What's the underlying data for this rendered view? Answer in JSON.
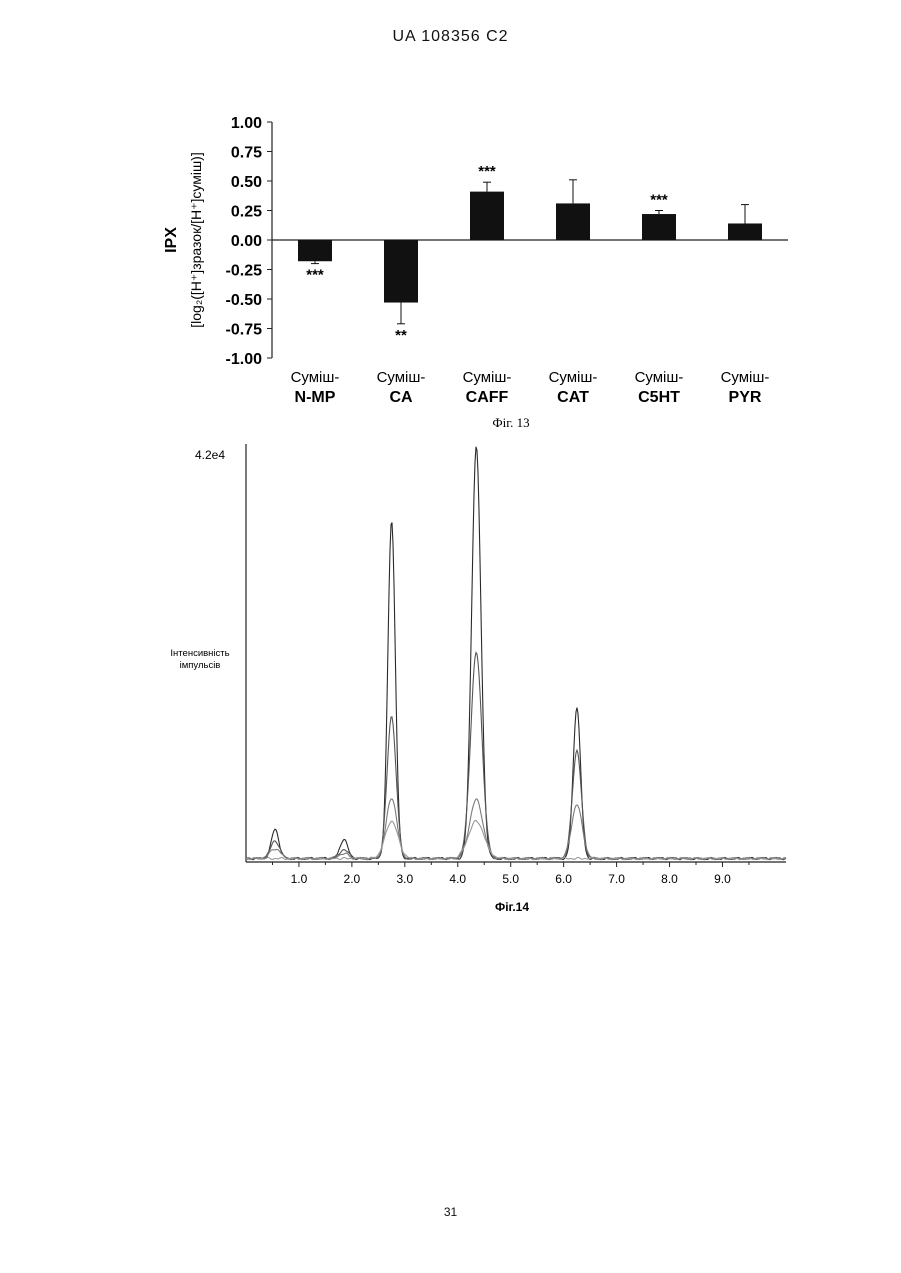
{
  "document": {
    "header": "UA   108356   C2",
    "page_number": "31"
  },
  "chart_data": [
    {
      "type": "bar",
      "ylabel_main": "IPX",
      "ylabel_sub": "[log₂([H⁺]зразок/[H⁺]суміш)]",
      "ylim": [
        -1.0,
        1.0
      ],
      "yticks": [
        "1.00",
        "0.75",
        "0.50",
        "0.25",
        "0.00",
        "-0.25",
        "-0.50",
        "-0.75",
        "-1.00"
      ],
      "categories": [
        {
          "line1": "Суміш-",
          "line2": "N-MP"
        },
        {
          "line1": "Суміш-",
          "line2": "CA"
        },
        {
          "line1": "Суміш-",
          "line2": "CAFF"
        },
        {
          "line1": "Суміш-",
          "line2": "CAT"
        },
        {
          "line1": "Суміш-",
          "line2": "C5HT"
        },
        {
          "line1": "Суміш-",
          "line2": "PYR"
        }
      ],
      "values": [
        -0.18,
        -0.53,
        0.41,
        0.31,
        0.22,
        0.14
      ],
      "errors": [
        0.02,
        0.18,
        0.08,
        0.2,
        0.03,
        0.16
      ],
      "significance": [
        "***",
        "**",
        "***",
        "",
        "***",
        ""
      ],
      "caption": "Фіг. 13"
    },
    {
      "type": "line",
      "ylabel": "Інтенсивність імпульсів",
      "ylabel_line1": "Інтенсивність",
      "ylabel_line2": "імпульсів",
      "ymax_label": "4.2e4",
      "ylim": [
        0,
        42000
      ],
      "xlim": [
        0,
        10.2
      ],
      "xticks": [
        "1.0",
        "2.0",
        "3.0",
        "4.0",
        "5.0",
        "6.0",
        "7.0",
        "8.0",
        "9.0"
      ],
      "peaks": [
        {
          "x": 0.55,
          "heights": [
            3000,
            1800,
            1000
          ]
        },
        {
          "x": 1.85,
          "heights": [
            2000,
            900,
            500
          ]
        },
        {
          "x": 2.75,
          "heights": [
            34500,
            14500,
            6200,
            3800
          ]
        },
        {
          "x": 4.35,
          "heights": [
            42000,
            21000,
            6000,
            3800
          ]
        },
        {
          "x": 6.25,
          "heights": [
            15500,
            11000,
            5500
          ]
        }
      ],
      "caption": "Фіг.14"
    }
  ]
}
